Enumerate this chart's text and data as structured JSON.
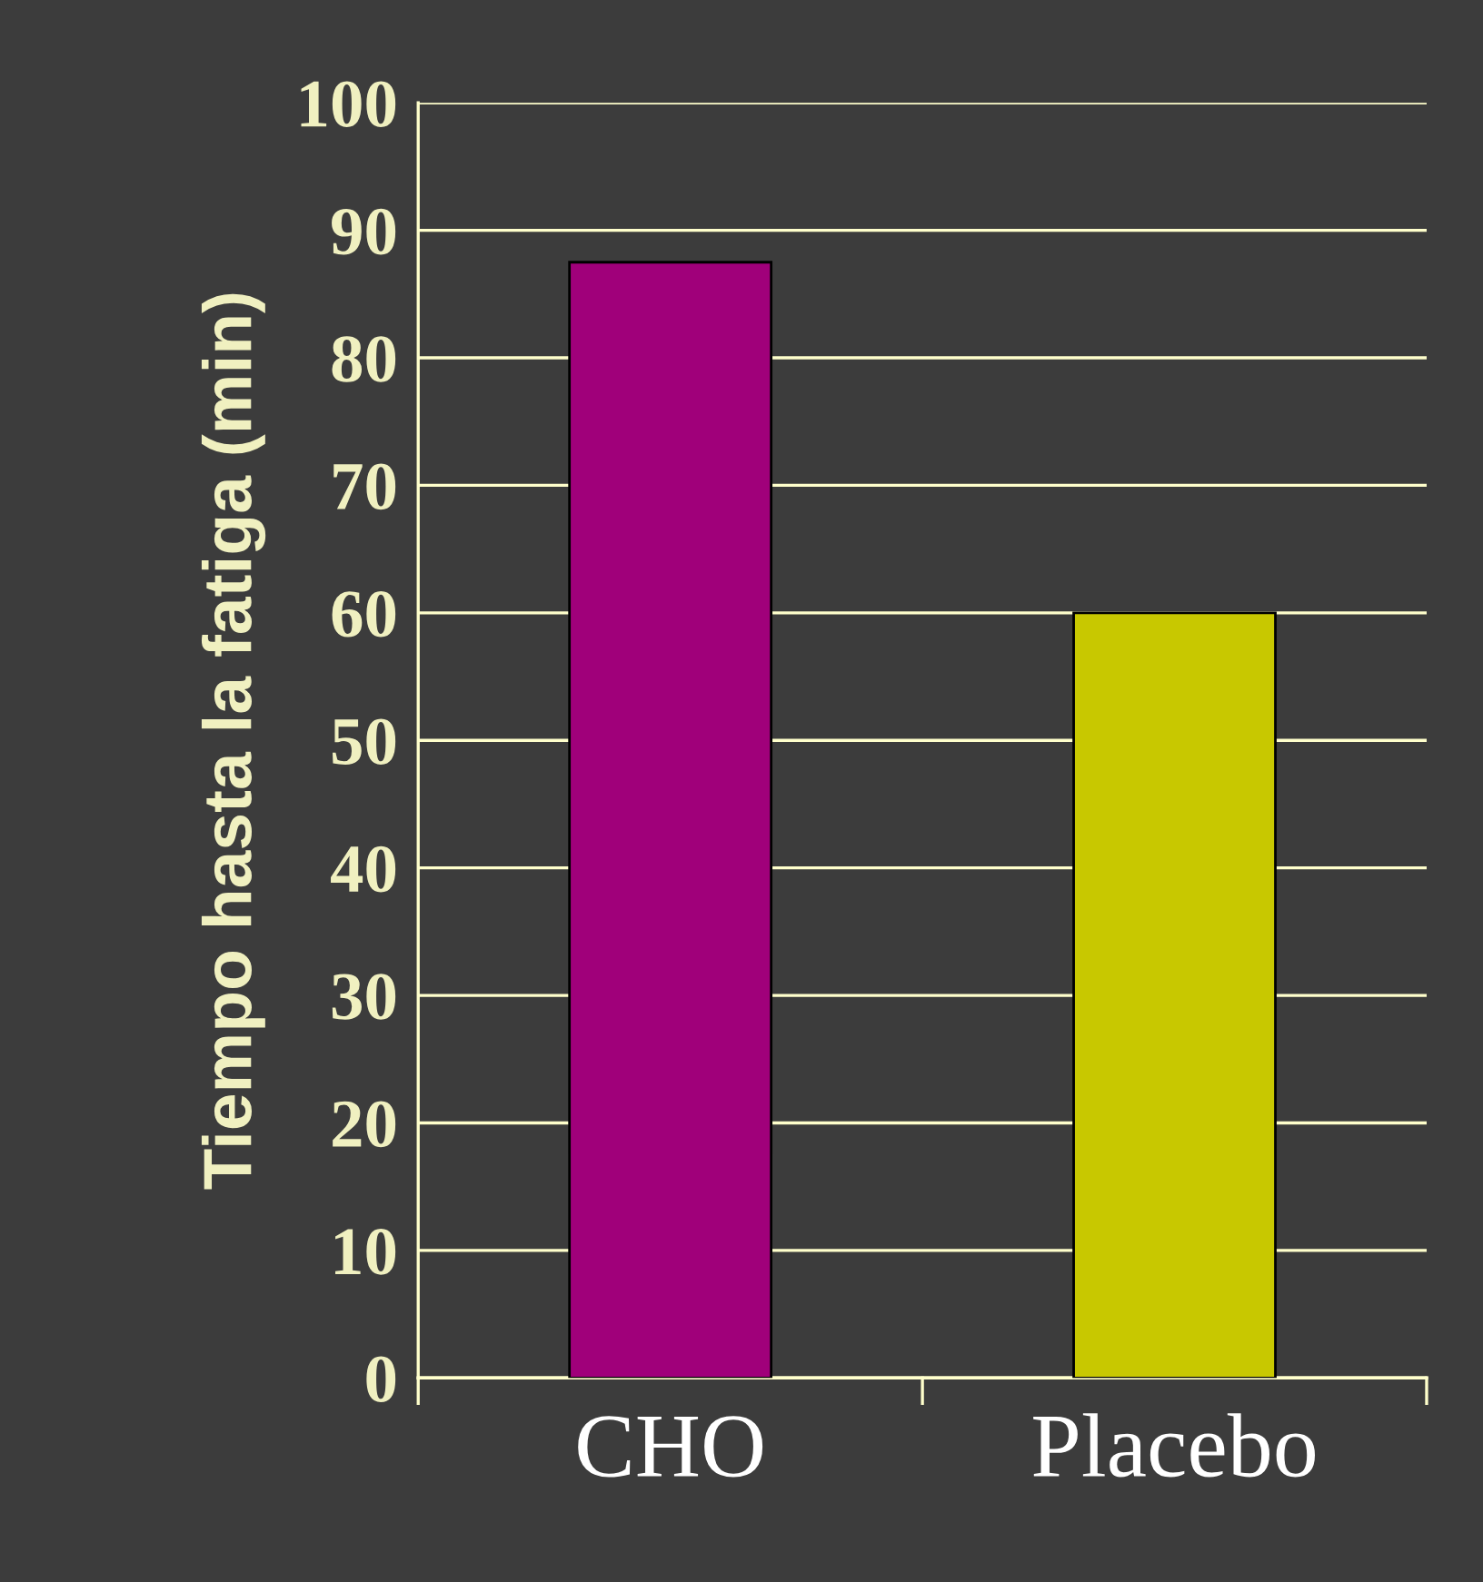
{
  "chart_data": {
    "type": "bar",
    "ylabel": "Tiempo hasta la fatiga (min)",
    "categories": [
      "CHO",
      "Placebo"
    ],
    "values": [
      87.5,
      60
    ],
    "colors": [
      "#a0007a",
      "#c8c800"
    ],
    "ylim": [
      0,
      100
    ],
    "yticks": [
      0,
      10,
      20,
      30,
      40,
      50,
      60,
      70,
      80,
      90,
      100
    ],
    "grid": "y"
  }
}
